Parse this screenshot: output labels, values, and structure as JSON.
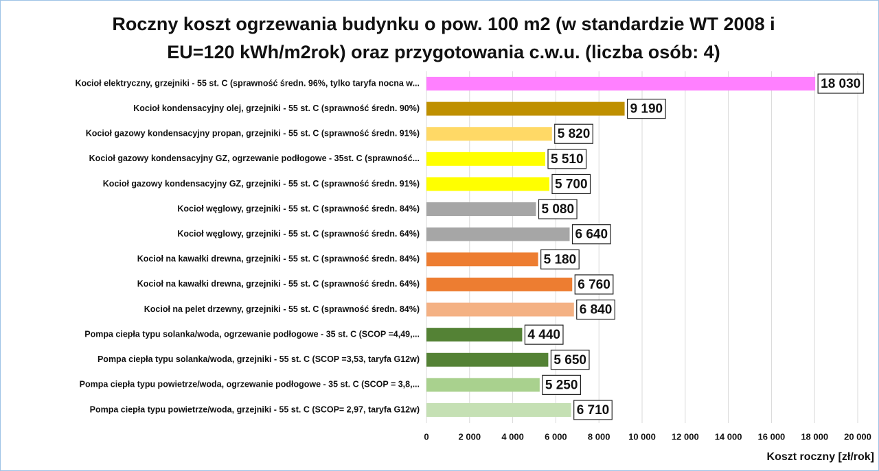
{
  "chart_data": {
    "type": "hbar",
    "title": "Roczny koszt ogrzewania budynku  o pow. 100 m2 (w standardzie WT 2008 i EU=120 kWh/m2rok) oraz przygotowania c.w.u. (liczba osób: 4)",
    "x_label": "Koszt roczny [zł/rok]",
    "categories": [
      "Kocioł  elektryczny,  grzejniki - 55 st. C  (sprawność średn. 96%, tylko taryfa nocna w...",
      "Kocioł  kondensacyjny olej,  grzejniki - 55 st. C  (sprawność średn. 90%)",
      "Kocioł gazowy kondensacyjny propan, grzejniki - 55 st. C  (sprawność średn. 91%)",
      "Kocioł gazowy kondensacyjny GZ, ogrzewanie podłogowe - 35st. C   (sprawność...",
      "Kocioł gazowy kondensacyjny GZ, grzejniki - 55 st. C   (sprawność średn. 91%)",
      "Kocioł węglowy,  grzejniki - 55 st. C  (sprawność średn. 84%)",
      "Kocioł węglowy,  grzejniki - 55 st. C  (sprawność średn. 64%)",
      "Kocioł na kawałki drewna, grzejniki - 55 st. C (sprawność średn. 84%)",
      "Kocioł na kawałki drewna, grzejniki - 55 st. C  (sprawność średn. 64%)",
      "Kocioł na pelet drzewny, grzejniki - 55 st. C (sprawność średn. 84%)",
      "Pompa ciepła typu solanka/woda, ogrzewanie podłogowe - 35 st. C  (SCOP =4,49,...",
      "Pompa ciepła typu solanka/woda, grzejniki - 55 st. C (SCOP =3,53, taryfa G12w)",
      "Pompa ciepła typu powietrze/woda, ogrzewanie podłogowe - 35 st. C (SCOP = 3,8,...",
      "Pompa ciepła typu powietrze/woda, grzejniki - 55 st. C (SCOP= 2,97, taryfa G12w)"
    ],
    "values": [
      18030,
      9190,
      5820,
      5510,
      5700,
      5080,
      6640,
      5180,
      6760,
      6840,
      4440,
      5650,
      5250,
      6710
    ],
    "value_labels": [
      "18 030",
      "9 190",
      "5 820",
      "5 510",
      "5 700",
      "5 080",
      "6 640",
      "5 180",
      "6 760",
      "6 840",
      "4 440",
      "5 650",
      "5 250",
      "6 710"
    ],
    "colors": [
      "#ff80ff",
      "#bf9000",
      "#ffd966",
      "#ffff00",
      "#ffff00",
      "#a6a6a6",
      "#a6a6a6",
      "#ed7d31",
      "#ed7d31",
      "#f4b183",
      "#548235",
      "#548235",
      "#a9d18e",
      "#c5e0b4"
    ],
    "xlim": [
      0,
      20000
    ],
    "xticks": [
      0,
      {
        "value": 2000,
        "label": "2 000"
      },
      {
        "value": 4000,
        "label": "4 000"
      },
      {
        "value": 6000,
        "label": "6 000"
      },
      {
        "value": 8000,
        "label": "8 000"
      },
      {
        "value": 10000,
        "label": "10 000"
      },
      {
        "value": 12000,
        "label": "12 000"
      },
      {
        "value": 14000,
        "label": "14 000"
      },
      {
        "value": 16000,
        "label": "16 000"
      },
      {
        "value": 18000,
        "label": "18 000"
      },
      {
        "value": 20000,
        "label": "20 000"
      }
    ],
    "grid": true
  }
}
